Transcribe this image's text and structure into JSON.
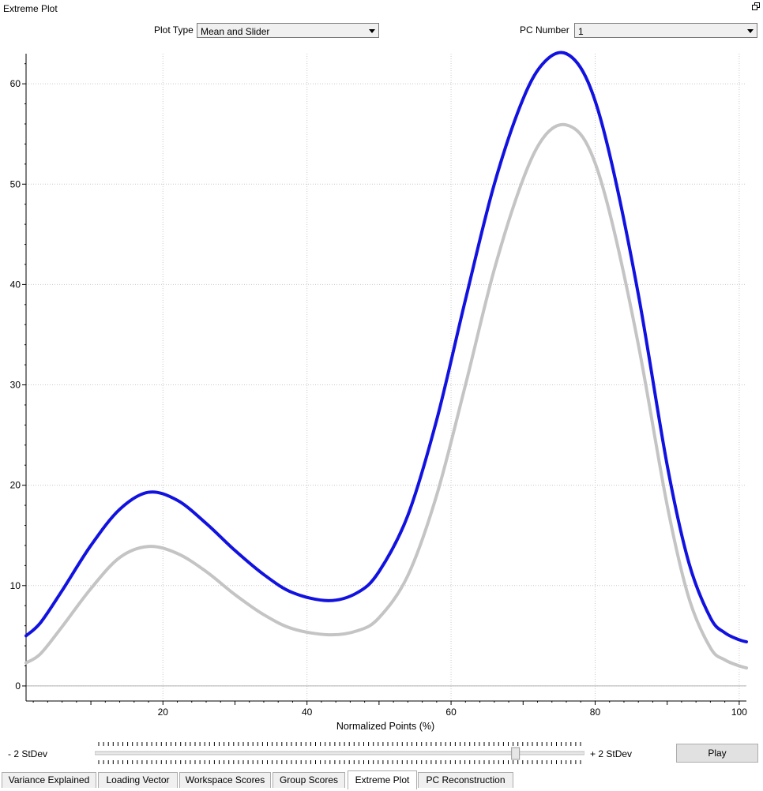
{
  "window": {
    "title": "Extreme Plot",
    "restore_icon": "restore-window-icon"
  },
  "controls": {
    "plot_type_label": "Plot Type",
    "plot_type_value": "Mean and Slider",
    "pc_number_label": "PC Number",
    "pc_number_value": "1"
  },
  "chart_data": {
    "type": "line",
    "title": "",
    "xlabel": "Normalized Points (%)",
    "ylabel": "",
    "xlim": [
      1,
      101
    ],
    "ylim": [
      -1.5,
      63
    ],
    "x_ticks": [
      20,
      40,
      60,
      80,
      100
    ],
    "y_ticks": [
      0,
      10,
      20,
      30,
      40,
      50,
      60
    ],
    "grid": true,
    "grid_style": "dotted",
    "series": [
      {
        "color": "#1212e0",
        "x": [
          1,
          3,
          6,
          10,
          14,
          18,
          22,
          26,
          30,
          34,
          38,
          43,
          47,
          50,
          54,
          58,
          62,
          66,
          70,
          73,
          76,
          79,
          82,
          86,
          90,
          93,
          96,
          98,
          100,
          101
        ],
        "y": [
          5.0,
          6.3,
          9.5,
          14.0,
          17.6,
          19.3,
          18.5,
          16.2,
          13.5,
          11.1,
          9.3,
          8.5,
          9.3,
          11.4,
          17.0,
          26.5,
          38.5,
          50.0,
          58.5,
          62.2,
          63.0,
          60.2,
          53.0,
          39.0,
          22.0,
          12.3,
          6.8,
          5.3,
          4.6,
          4.4
        ]
      },
      {
        "color": "#c4c4c4",
        "x": [
          1,
          3,
          6,
          10,
          14,
          18,
          22,
          26,
          30,
          34,
          38,
          43,
          47,
          50,
          54,
          58,
          62,
          66,
          70,
          73,
          76,
          79,
          82,
          86,
          90,
          93,
          96,
          98,
          100,
          101
        ],
        "y": [
          2.3,
          3.2,
          5.9,
          9.7,
          12.8,
          13.9,
          13.2,
          11.4,
          9.1,
          7.1,
          5.7,
          5.1,
          5.5,
          6.8,
          11.0,
          19.0,
          30.0,
          41.5,
          50.5,
          54.8,
          55.9,
          53.8,
          47.2,
          34.0,
          18.0,
          8.8,
          3.8,
          2.6,
          2.0,
          1.8
        ]
      }
    ]
  },
  "slider": {
    "left_label": "- 2 StDev",
    "right_label": "+ 2 StDev",
    "value_fraction": 0.865
  },
  "play_label": "Play",
  "tabs": [
    {
      "label": "Variance Explained"
    },
    {
      "label": "Loading Vector"
    },
    {
      "label": "Workspace Scores"
    },
    {
      "label": "Group Scores"
    },
    {
      "label": "Extreme Plot",
      "active": true
    },
    {
      "label": "PC Reconstruction"
    }
  ]
}
